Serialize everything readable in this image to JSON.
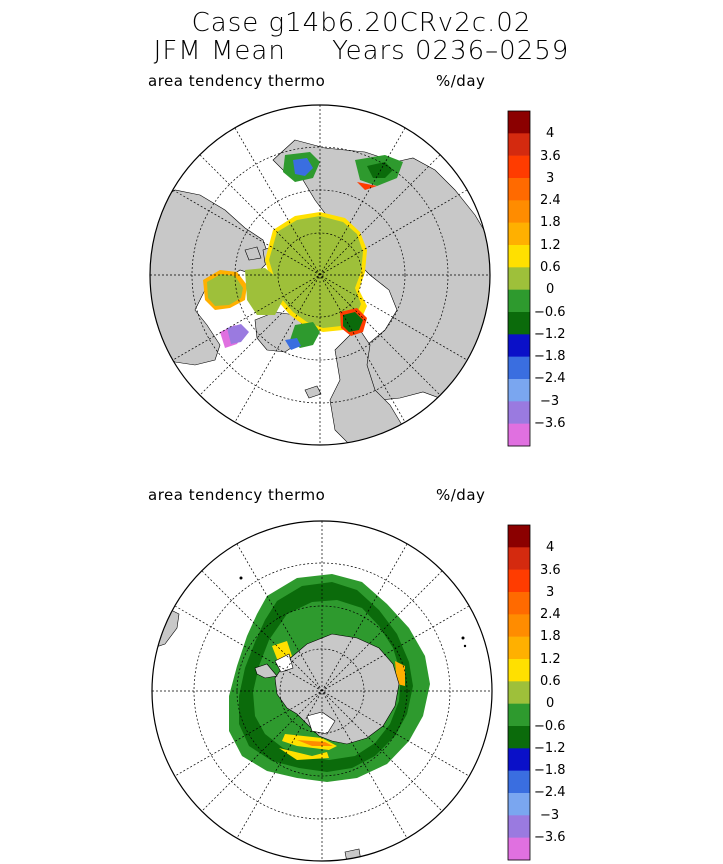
{
  "title": {
    "line1": "Case g14b6.20CRv2c.02",
    "line2": "JFM Mean     Years 0236–0259"
  },
  "panels": [
    {
      "id": "north",
      "field_label": "area tendency thermo",
      "units": "%/day"
    },
    {
      "id": "south",
      "field_label": "area tendency thermo",
      "units": "%/day"
    }
  ],
  "colorbar": {
    "labels": [
      "4",
      "3.6",
      "3",
      "2.4",
      "1.8",
      "1.2",
      "0.6",
      "0",
      "−0.6",
      "−1.2",
      "−1.8",
      "−2.4",
      "−3",
      "−3.6"
    ],
    "colors": [
      "#8b0000",
      "#d42a0f",
      "#ff3c00",
      "#ff6a00",
      "#ff8c00",
      "#ffb000",
      "#ffe000",
      "#9ec03a",
      "#2e9a2e",
      "#0b6b0b",
      "#0a10c8",
      "#3a6ee0",
      "#7aa6f0",
      "#9a7ae0",
      "#e070e0"
    ]
  },
  "colors": {
    "land": "#c8c8c8",
    "ocean": "#ffffff",
    "outline": "#000000"
  }
}
